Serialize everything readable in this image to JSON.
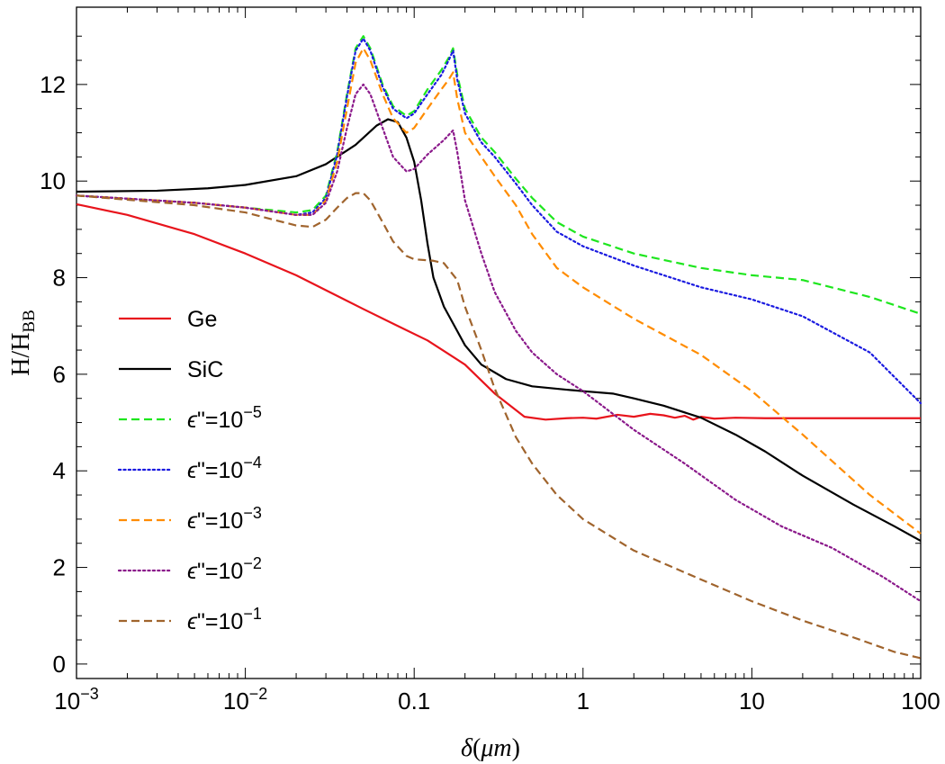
{
  "chart_data": {
    "type": "line",
    "xscale": "log",
    "xlim": [
      0.001,
      100
    ],
    "ylim": [
      -0.3,
      13.6
    ],
    "xlabel": {
      "symbol": "δ",
      "unit": "μm"
    },
    "ylabel": {
      "main": "H/H",
      "sub": "BB"
    },
    "x_ticks": [
      {
        "value": 0.001,
        "base": "10",
        "exp": "−3"
      },
      {
        "value": 0.01,
        "base": "10",
        "exp": "−2"
      },
      {
        "value": 0.1,
        "text": "0.1"
      },
      {
        "value": 1,
        "text": "1"
      },
      {
        "value": 10,
        "text": "10"
      },
      {
        "value": 100,
        "text": "100"
      }
    ],
    "y_ticks": [
      0,
      2,
      4,
      6,
      8,
      10,
      12
    ],
    "legend_position": "left",
    "series": [
      {
        "name": "Ge",
        "label": "Ge",
        "color": "#e8141c",
        "dash": "solid",
        "points": [
          [
            0.001,
            9.52
          ],
          [
            0.002,
            9.3
          ],
          [
            0.005,
            8.9
          ],
          [
            0.01,
            8.5
          ],
          [
            0.02,
            8.05
          ],
          [
            0.05,
            7.35
          ],
          [
            0.08,
            7.0
          ],
          [
            0.12,
            6.7
          ],
          [
            0.2,
            6.2
          ],
          [
            0.3,
            5.6
          ],
          [
            0.45,
            5.12
          ],
          [
            0.6,
            5.06
          ],
          [
            0.8,
            5.09
          ],
          [
            1,
            5.1
          ],
          [
            1.2,
            5.08
          ],
          [
            1.6,
            5.16
          ],
          [
            2.0,
            5.12
          ],
          [
            2.5,
            5.18
          ],
          [
            3,
            5.15
          ],
          [
            3.5,
            5.1
          ],
          [
            4,
            5.14
          ],
          [
            4.5,
            5.06
          ],
          [
            5,
            5.12
          ],
          [
            6,
            5.08
          ],
          [
            8,
            5.1
          ],
          [
            12,
            5.09
          ],
          [
            20,
            5.09
          ],
          [
            50,
            5.09
          ],
          [
            100,
            5.09
          ]
        ]
      },
      {
        "name": "SiC",
        "label": "SiC",
        "color": "#000000",
        "dash": "solid",
        "points": [
          [
            0.001,
            9.78
          ],
          [
            0.003,
            9.8
          ],
          [
            0.006,
            9.85
          ],
          [
            0.01,
            9.92
          ],
          [
            0.02,
            10.1
          ],
          [
            0.03,
            10.35
          ],
          [
            0.045,
            10.75
          ],
          [
            0.06,
            11.15
          ],
          [
            0.07,
            11.28
          ],
          [
            0.08,
            11.22
          ],
          [
            0.09,
            10.9
          ],
          [
            0.1,
            10.4
          ],
          [
            0.11,
            9.6
          ],
          [
            0.12,
            8.7
          ],
          [
            0.13,
            8.0
          ],
          [
            0.15,
            7.4
          ],
          [
            0.2,
            6.6
          ],
          [
            0.25,
            6.2
          ],
          [
            0.35,
            5.9
          ],
          [
            0.5,
            5.75
          ],
          [
            0.8,
            5.68
          ],
          [
            1,
            5.65
          ],
          [
            1.5,
            5.6
          ],
          [
            2,
            5.5
          ],
          [
            3,
            5.35
          ],
          [
            5,
            5.1
          ],
          [
            8,
            4.75
          ],
          [
            12,
            4.4
          ],
          [
            20,
            3.9
          ],
          [
            40,
            3.3
          ],
          [
            70,
            2.85
          ],
          [
            100,
            2.55
          ]
        ]
      },
      {
        "name": "eps-1e-5",
        "label_base": "ϵ\"=10",
        "label_exp": "−5",
        "color": "#1ee61e",
        "dash": "dashed",
        "points": [
          [
            0.001,
            9.7
          ],
          [
            0.005,
            9.55
          ],
          [
            0.01,
            9.45
          ],
          [
            0.02,
            9.35
          ],
          [
            0.025,
            9.4
          ],
          [
            0.03,
            9.7
          ],
          [
            0.035,
            10.6
          ],
          [
            0.04,
            11.8
          ],
          [
            0.045,
            12.75
          ],
          [
            0.05,
            13.0
          ],
          [
            0.055,
            12.75
          ],
          [
            0.065,
            12.0
          ],
          [
            0.075,
            11.55
          ],
          [
            0.09,
            11.35
          ],
          [
            0.1,
            11.45
          ],
          [
            0.12,
            11.9
          ],
          [
            0.145,
            12.3
          ],
          [
            0.16,
            12.55
          ],
          [
            0.17,
            12.75
          ],
          [
            0.18,
            12.2
          ],
          [
            0.2,
            11.5
          ],
          [
            0.25,
            10.9
          ],
          [
            0.3,
            10.6
          ],
          [
            0.4,
            10.05
          ],
          [
            0.5,
            9.65
          ],
          [
            0.7,
            9.15
          ],
          [
            1,
            8.85
          ],
          [
            2,
            8.5
          ],
          [
            5,
            8.2
          ],
          [
            10,
            8.05
          ],
          [
            20,
            7.95
          ],
          [
            50,
            7.6
          ],
          [
            100,
            7.25
          ]
        ]
      },
      {
        "name": "eps-1e-4",
        "label_base": "ϵ\"=10",
        "label_exp": "−4",
        "color": "#1a1ae0",
        "dash": "dotted",
        "points": [
          [
            0.001,
            9.7
          ],
          [
            0.005,
            9.55
          ],
          [
            0.01,
            9.45
          ],
          [
            0.02,
            9.3
          ],
          [
            0.025,
            9.35
          ],
          [
            0.03,
            9.65
          ],
          [
            0.035,
            10.55
          ],
          [
            0.04,
            11.75
          ],
          [
            0.045,
            12.7
          ],
          [
            0.05,
            12.95
          ],
          [
            0.055,
            12.7
          ],
          [
            0.065,
            11.95
          ],
          [
            0.075,
            11.5
          ],
          [
            0.09,
            11.3
          ],
          [
            0.1,
            11.4
          ],
          [
            0.12,
            11.8
          ],
          [
            0.145,
            12.2
          ],
          [
            0.16,
            12.5
          ],
          [
            0.17,
            12.7
          ],
          [
            0.18,
            12.1
          ],
          [
            0.2,
            11.4
          ],
          [
            0.25,
            10.8
          ],
          [
            0.3,
            10.5
          ],
          [
            0.4,
            9.95
          ],
          [
            0.5,
            9.5
          ],
          [
            0.7,
            8.95
          ],
          [
            1,
            8.65
          ],
          [
            2,
            8.25
          ],
          [
            5,
            7.8
          ],
          [
            10,
            7.55
          ],
          [
            20,
            7.2
          ],
          [
            50,
            6.45
          ],
          [
            100,
            5.4
          ]
        ]
      },
      {
        "name": "eps-1e-3",
        "label_base": "ϵ\"=10",
        "label_exp": "−3",
        "color": "#ff8c00",
        "dash": "dashed",
        "points": [
          [
            0.001,
            9.7
          ],
          [
            0.005,
            9.55
          ],
          [
            0.01,
            9.45
          ],
          [
            0.02,
            9.3
          ],
          [
            0.025,
            9.3
          ],
          [
            0.03,
            9.6
          ],
          [
            0.035,
            10.4
          ],
          [
            0.04,
            11.5
          ],
          [
            0.045,
            12.45
          ],
          [
            0.05,
            12.75
          ],
          [
            0.055,
            12.5
          ],
          [
            0.065,
            11.8
          ],
          [
            0.075,
            11.3
          ],
          [
            0.09,
            11.0
          ],
          [
            0.1,
            11.1
          ],
          [
            0.12,
            11.5
          ],
          [
            0.145,
            11.9
          ],
          [
            0.16,
            12.1
          ],
          [
            0.17,
            12.25
          ],
          [
            0.18,
            11.7
          ],
          [
            0.2,
            11.0
          ],
          [
            0.25,
            10.5
          ],
          [
            0.3,
            10.1
          ],
          [
            0.4,
            9.5
          ],
          [
            0.5,
            8.9
          ],
          [
            0.7,
            8.2
          ],
          [
            1,
            7.8
          ],
          [
            2,
            7.15
          ],
          [
            5,
            6.4
          ],
          [
            10,
            5.65
          ],
          [
            20,
            4.75
          ],
          [
            50,
            3.5
          ],
          [
            100,
            2.7
          ]
        ]
      },
      {
        "name": "eps-1e-2",
        "label_base": "ϵ\"=10",
        "label_exp": "−2",
        "color": "#8b1a8b",
        "dash": "dotted",
        "points": [
          [
            0.001,
            9.7
          ],
          [
            0.005,
            9.55
          ],
          [
            0.01,
            9.45
          ],
          [
            0.02,
            9.3
          ],
          [
            0.025,
            9.3
          ],
          [
            0.03,
            9.55
          ],
          [
            0.035,
            10.2
          ],
          [
            0.04,
            11.1
          ],
          [
            0.045,
            11.8
          ],
          [
            0.05,
            12.0
          ],
          [
            0.055,
            11.8
          ],
          [
            0.065,
            11.1
          ],
          [
            0.075,
            10.5
          ],
          [
            0.09,
            10.2
          ],
          [
            0.1,
            10.25
          ],
          [
            0.12,
            10.55
          ],
          [
            0.15,
            10.85
          ],
          [
            0.17,
            11.05
          ],
          [
            0.18,
            10.6
          ],
          [
            0.2,
            9.6
          ],
          [
            0.25,
            8.5
          ],
          [
            0.3,
            7.7
          ],
          [
            0.4,
            6.9
          ],
          [
            0.5,
            6.45
          ],
          [
            0.7,
            6.0
          ],
          [
            1,
            5.65
          ],
          [
            2,
            4.85
          ],
          [
            4,
            4.15
          ],
          [
            8,
            3.4
          ],
          [
            15,
            2.85
          ],
          [
            30,
            2.4
          ],
          [
            60,
            1.8
          ],
          [
            100,
            1.3
          ]
        ]
      },
      {
        "name": "eps-1e-1",
        "label_base": "ϵ\"=10",
        "label_exp": "−1",
        "color": "#a0642d",
        "dash": "dashed",
        "points": [
          [
            0.001,
            9.7
          ],
          [
            0.005,
            9.5
          ],
          [
            0.01,
            9.35
          ],
          [
            0.02,
            9.08
          ],
          [
            0.025,
            9.05
          ],
          [
            0.03,
            9.2
          ],
          [
            0.035,
            9.45
          ],
          [
            0.04,
            9.65
          ],
          [
            0.045,
            9.75
          ],
          [
            0.05,
            9.75
          ],
          [
            0.055,
            9.6
          ],
          [
            0.065,
            9.15
          ],
          [
            0.075,
            8.75
          ],
          [
            0.09,
            8.45
          ],
          [
            0.1,
            8.38
          ],
          [
            0.13,
            8.35
          ],
          [
            0.15,
            8.3
          ],
          [
            0.18,
            7.95
          ],
          [
            0.2,
            7.4
          ],
          [
            0.25,
            6.5
          ],
          [
            0.3,
            5.7
          ],
          [
            0.4,
            4.7
          ],
          [
            0.5,
            4.15
          ],
          [
            0.7,
            3.5
          ],
          [
            1,
            3.0
          ],
          [
            2,
            2.35
          ],
          [
            5,
            1.75
          ],
          [
            10,
            1.3
          ],
          [
            20,
            0.9
          ],
          [
            40,
            0.55
          ],
          [
            70,
            0.25
          ],
          [
            100,
            0.12
          ]
        ]
      }
    ]
  }
}
